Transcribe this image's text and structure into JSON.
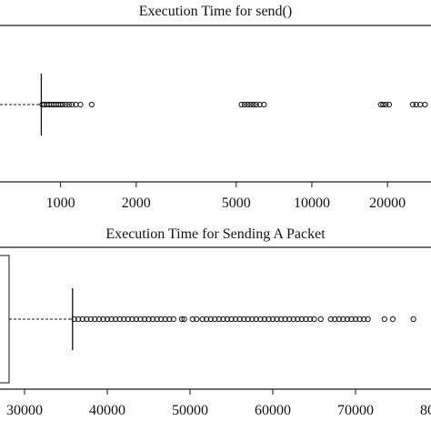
{
  "chart_data": [
    {
      "type": "box",
      "title": "Execution Time for send()",
      "log_scale": true,
      "xlim": [
        574,
        29800
      ],
      "xticks": [
        1000,
        2000,
        5000,
        10000,
        20000
      ],
      "whisker_high": 838,
      "outliers": [
        845,
        860,
        880,
        900,
        920,
        940,
        960,
        980,
        1000,
        1020,
        1050,
        1080,
        1110,
        1150,
        1200,
        1330,
        5250,
        5400,
        5550,
        5700,
        5850,
        6000,
        6200,
        6450,
        18800,
        19200,
        19700,
        20300,
        25200,
        26000,
        27000,
        28200
      ]
    },
    {
      "type": "box",
      "title": "Execution Time for Sending A Packet",
      "log_scale": false,
      "xlim": [
        27033,
        79120
      ],
      "xticks": [
        30000,
        40000,
        50000,
        60000,
        70000,
        80000
      ],
      "box_high": 28130,
      "whisker_high": 35800,
      "outliers": [
        36000,
        36500,
        37000,
        37500,
        38000,
        38500,
        39000,
        39500,
        40000,
        40500,
        41000,
        41500,
        42000,
        42500,
        43000,
        43500,
        44000,
        44500,
        45000,
        45500,
        46000,
        46500,
        47000,
        47500,
        48000,
        49000,
        49300,
        50300,
        50800,
        51500,
        52000,
        52500,
        53000,
        53500,
        54000,
        54500,
        55000,
        55500,
        56000,
        56500,
        57000,
        57500,
        58000,
        58500,
        59000,
        59500,
        60000,
        60500,
        61000,
        61500,
        62000,
        62500,
        63000,
        63500,
        64000,
        64500,
        65000,
        65800,
        67000,
        67500,
        68000,
        68500,
        69000,
        69500,
        70000,
        70500,
        71000,
        71500,
        73500,
        74500,
        77000
      ]
    }
  ]
}
